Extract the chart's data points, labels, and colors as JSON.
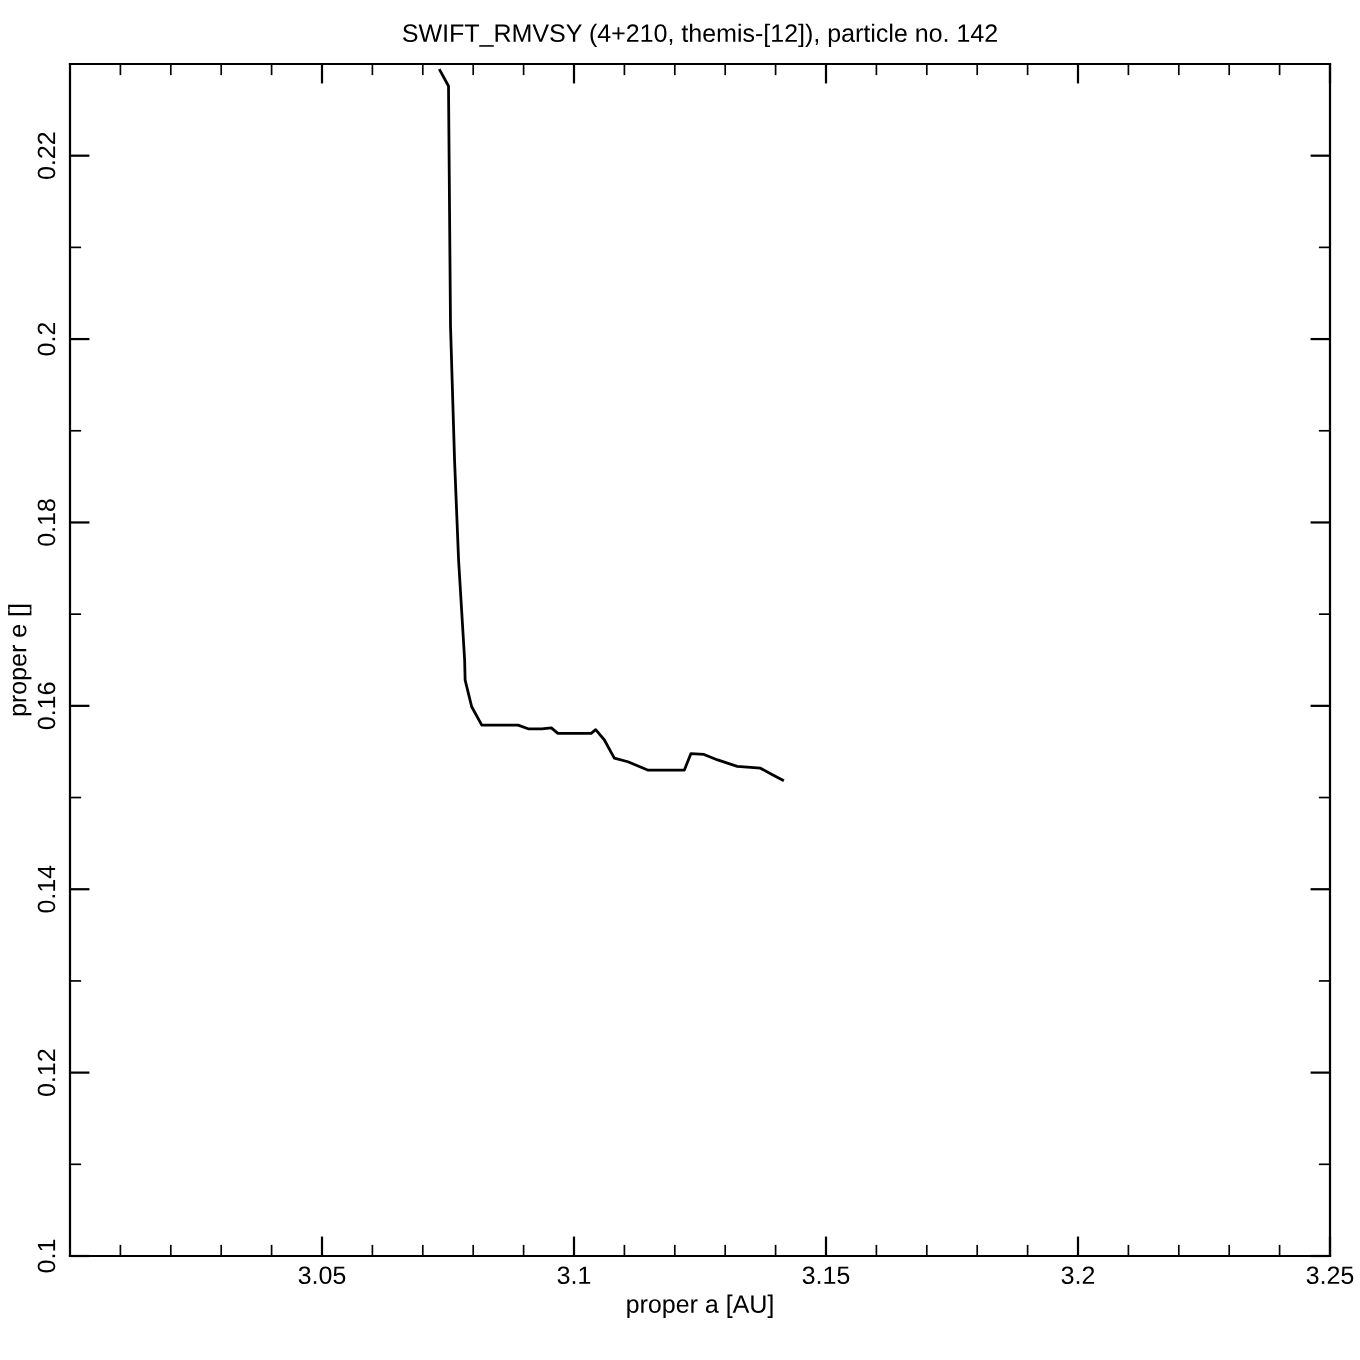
{
  "chart_data": {
    "type": "line",
    "title": "SWIFT_RMVSY (4+210, themis-[12]), particle no. 142",
    "xlabel": "proper a [AU]",
    "ylabel": "proper e []",
    "xlim": [
      3.0,
      3.25
    ],
    "ylim": [
      0.1,
      0.23
    ],
    "xticks": [
      {
        "value": 3.01,
        "label": null
      },
      {
        "value": 3.02,
        "label": null
      },
      {
        "value": 3.03,
        "label": null
      },
      {
        "value": 3.04,
        "label": null
      },
      3.05,
      {
        "value": 3.06,
        "label": null
      },
      {
        "value": 3.07,
        "label": null
      },
      {
        "value": 3.08,
        "label": null
      },
      {
        "value": 3.09,
        "label": null
      },
      3.1,
      {
        "value": 3.11,
        "label": null
      },
      {
        "value": 3.12,
        "label": null
      },
      {
        "value": 3.13,
        "label": null
      },
      {
        "value": 3.14,
        "label": null
      },
      3.15,
      {
        "value": 3.16,
        "label": null
      },
      {
        "value": 3.17,
        "label": null
      },
      {
        "value": 3.18,
        "label": null
      },
      {
        "value": 3.19,
        "label": null
      },
      3.2,
      {
        "value": 3.21,
        "label": null
      },
      {
        "value": 3.22,
        "label": null
      },
      {
        "value": 3.23,
        "label": null
      },
      {
        "value": 3.24,
        "label": null
      },
      3.25
    ],
    "yticks": [
      0.1,
      {
        "value": 0.11,
        "label": null
      },
      0.12,
      {
        "value": 0.13,
        "label": null
      },
      0.14,
      {
        "value": 0.15,
        "label": null
      },
      0.16,
      {
        "value": 0.17,
        "label": null
      },
      0.18,
      {
        "value": 0.19,
        "label": null
      },
      0.2,
      {
        "value": 0.21,
        "label": null
      },
      0.22
    ],
    "grid": false,
    "marker": "none",
    "line_style": "solid",
    "series": [
      {
        "color": "#000000",
        "x": [
          3.0734,
          3.0751,
          3.0755,
          3.0763,
          3.0771,
          3.0783,
          3.0784,
          3.0797,
          3.0817,
          3.0889,
          3.0909,
          3.0936,
          3.0955,
          3.0968,
          3.1034,
          3.1043,
          3.106,
          3.108,
          3.1107,
          3.1146,
          3.1219,
          3.1232,
          3.1258,
          3.1285,
          3.1324,
          3.137,
          3.139,
          3.1414
        ],
        "values": [
          0.2293,
          0.2276,
          0.2014,
          0.1868,
          0.1759,
          0.165,
          0.1628,
          0.1599,
          0.1579,
          0.1579,
          0.1575,
          0.1575,
          0.1576,
          0.157,
          0.157,
          0.1574,
          0.1563,
          0.1543,
          0.1539,
          0.153,
          0.153,
          0.1548,
          0.1547,
          0.1541,
          0.1534,
          0.1532,
          0.1526,
          0.1519
        ]
      }
    ]
  }
}
